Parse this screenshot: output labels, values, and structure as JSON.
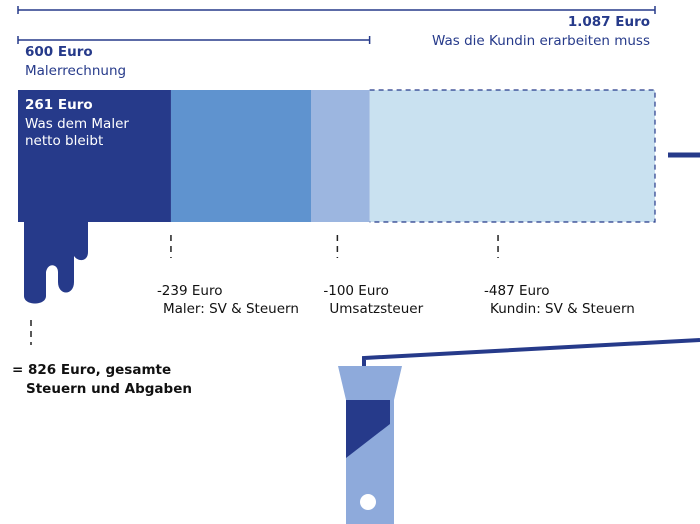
{
  "chart_data": {
    "type": "waterfall",
    "xlim": [
      0,
      1087
    ],
    "total": {
      "value": 1087,
      "label": "1.087 Euro",
      "name": "Was die Kundin erarbeiten muss"
    },
    "subtotal": {
      "value": 600,
      "label": "600 Euro",
      "name": "Malerrechnung"
    },
    "remainder": {
      "value": 261,
      "label": "261 Euro",
      "name": "Was dem Maler netto bleibt",
      "color": "#263a8a"
    },
    "steps": [
      {
        "name": "Kundin: SV & Steuern",
        "value": -487,
        "label": "-487 Euro",
        "color": "#c9e1f0"
      },
      {
        "name": "Umsatzsteuer",
        "value": -100,
        "label": "-100 Euro",
        "color": "#9cb6e0"
      },
      {
        "name": "Maler: SV & Steuern",
        "value": -239,
        "label": "-239 Euro",
        "color": "#5f93cf"
      }
    ],
    "annotation": [
      "= 826 Euro, gesamte",
      "Steuern und Abgaben"
    ]
  }
}
